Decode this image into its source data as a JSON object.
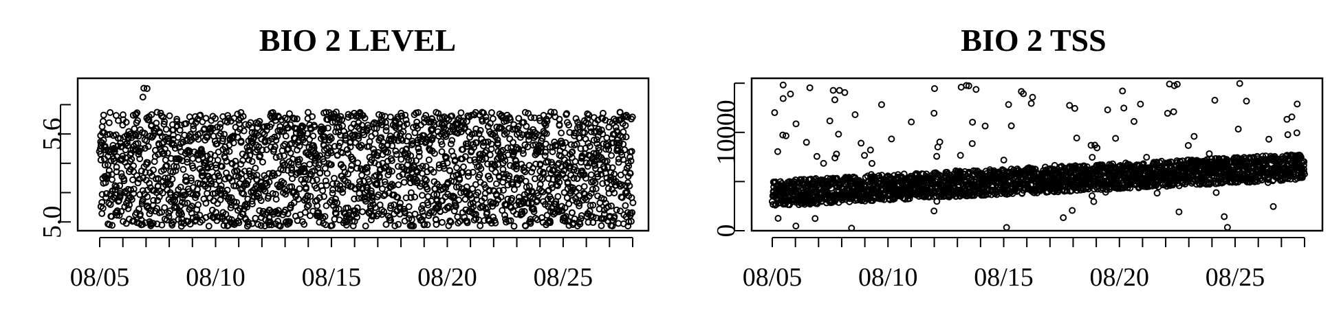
{
  "chart_data": [
    {
      "type": "scatter",
      "title": "BIO 2 LEVEL",
      "xlabel": "",
      "ylabel": "",
      "x_tick_labels": [
        "08/05",
        "08/10",
        "08/15",
        "08/20",
        "08/25"
      ],
      "y_tick_labels": [
        "5.0",
        "5.6"
      ],
      "x_range": [
        "2023-08-05",
        "2023-08-28"
      ],
      "ylim": [
        4.94,
        5.98
      ],
      "y_ticks": [
        5.0,
        5.2,
        5.4,
        5.6,
        5.8
      ],
      "marker": "open-circle",
      "color": "#000000",
      "series_summary": {
        "baseline_low": 4.97,
        "baseline_high": 5.75,
        "peak": {
          "x": "2023-08-07",
          "y": 5.95
        }
      }
    },
    {
      "type": "scatter",
      "title": "BIO 2 TSS",
      "xlabel": "",
      "ylabel": "",
      "x_tick_labels": [
        "08/05",
        "08/10",
        "08/15",
        "08/20",
        "08/25"
      ],
      "y_tick_labels": [
        "0",
        "10000"
      ],
      "x_range": [
        "2023-08-05",
        "2023-08-28"
      ],
      "ylim": [
        0,
        15500
      ],
      "y_ticks": [
        0,
        5000,
        10000,
        15000
      ],
      "marker": "open-circle",
      "color": "#000000",
      "series_summary": {
        "trend_start": 3800,
        "trend_end": 6500,
        "max_spike": 15000,
        "min_dip": 200
      }
    }
  ]
}
